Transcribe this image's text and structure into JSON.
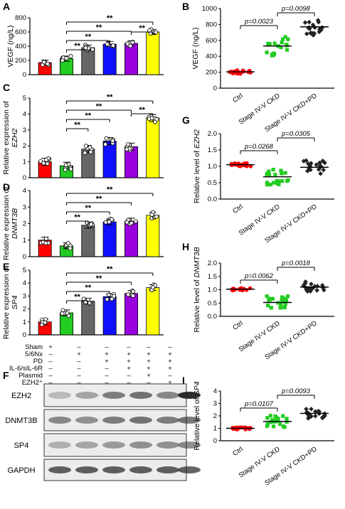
{
  "colors": {
    "red": "#ff0000",
    "green": "#22cc22",
    "gray": "#666666",
    "blue": "#1010ff",
    "purple": "#9900dd",
    "yellow": "#ffff00"
  },
  "panels": {
    "A": "A",
    "B": "B",
    "C": "C",
    "D": "D",
    "E": "E",
    "F": "F",
    "G": "G",
    "H": "H",
    "I": "I"
  },
  "chart_data": [
    {
      "id": "A",
      "type": "bar",
      "ylabel": "VEGF (ng/L)",
      "ylim": [
        0,
        800
      ],
      "yticks": [
        "0",
        "200",
        "400",
        "600",
        "800"
      ],
      "values": [
        170,
        225,
        380,
        430,
        440,
        600
      ],
      "sig": [
        "**",
        "**",
        "**",
        "**",
        "**"
      ]
    },
    {
      "id": "C",
      "type": "bar",
      "ylabel_line1": "Relative expression of",
      "ylabel_line2": "EZH2",
      "ylim": [
        0,
        5
      ],
      "yticks": [
        "0",
        "1",
        "2",
        "3",
        "4",
        "5"
      ],
      "values": [
        1.0,
        0.75,
        1.8,
        2.3,
        1.95,
        3.75
      ],
      "sig": [
        "**",
        "**",
        "**",
        "**",
        "**"
      ]
    },
    {
      "id": "D",
      "type": "bar",
      "ylabel_line1": "Relative expression of",
      "ylabel_line2": "DNMT3B",
      "ylim": [
        0,
        4
      ],
      "yticks": [
        "0",
        "1",
        "2",
        "3",
        "4"
      ],
      "values": [
        1.0,
        0.65,
        1.9,
        2.1,
        2.15,
        2.5
      ],
      "sig": [
        "**",
        "**",
        "**",
        "**"
      ]
    },
    {
      "id": "E",
      "type": "bar",
      "ylabel_line1": "Relative expression of",
      "ylabel_line2": "SP4",
      "ylim": [
        0,
        5
      ],
      "yticks": [
        "0",
        "1",
        "2",
        "3",
        "4",
        "5"
      ],
      "values": [
        1.0,
        1.7,
        2.6,
        2.95,
        3.2,
        3.65
      ],
      "sig": [
        "**",
        "**",
        "**",
        "**"
      ]
    },
    {
      "id": "B",
      "type": "scatter",
      "ylabel": "VEGF (ng/L)",
      "ylim": [
        0,
        1000
      ],
      "yticks": [
        "0",
        "200",
        "400",
        "600",
        "800",
        "1000"
      ],
      "categories": [
        "Ctrl",
        "Stage IV-V CKD",
        "Stage IV-V CKD+PD"
      ],
      "means": [
        205,
        530,
        770
      ],
      "pvalues": [
        "p=0.0023",
        "p=0.0098"
      ]
    },
    {
      "id": "G",
      "type": "scatter",
      "ylabel_line1": "Relative level of",
      "ylabel_line2": "EZH2",
      "ylim": [
        0,
        2.0
      ],
      "yticks": [
        "0.0",
        "0.5",
        "1.0",
        "1.5",
        "2.0"
      ],
      "categories": [
        "Ctrl",
        "Stage IV-V CKD",
        "Stage IV-V CKD+PD"
      ],
      "means": [
        1.05,
        0.68,
        0.97
      ],
      "pvalues": [
        "p=0.0268",
        "p=0.0305"
      ]
    },
    {
      "id": "H",
      "type": "scatter",
      "ylabel_line1": "Relative level of",
      "ylabel_line2": "DNMT3B",
      "ylim": [
        0,
        2.0
      ],
      "yticks": [
        "0.0",
        "0.5",
        "1.0",
        "1.5",
        "2.0"
      ],
      "categories": [
        "Ctrl",
        "Stage IV-V CKD",
        "Stage IV-V CKD+PD"
      ],
      "means": [
        1.02,
        0.52,
        1.1
      ],
      "pvalues": [
        "p=0.0062",
        "p=0.0018"
      ]
    },
    {
      "id": "I",
      "type": "scatter",
      "ylabel_line1": "Relative level of",
      "ylabel_line2": "SP4",
      "ylim": [
        0,
        4
      ],
      "yticks": [
        "0",
        "1",
        "2",
        "3",
        "4"
      ],
      "categories": [
        "Ctrl",
        "Stage IV-V CKD",
        "Stage IV-V CKD+PD"
      ],
      "means": [
        1.0,
        1.55,
        2.2
      ],
      "pvalues": [
        "p=0.0107",
        "p=0.0093"
      ]
    }
  ],
  "table": {
    "rows": [
      {
        "label": "Sham",
        "cells": [
          "+",
          "–",
          "–",
          "–",
          "–",
          "–"
        ]
      },
      {
        "label": "5/6Nx",
        "cells": [
          "–",
          "+",
          "+",
          "+",
          "+",
          "+"
        ]
      },
      {
        "label": "PD",
        "cells": [
          "–",
          "–",
          "+",
          "+",
          "+",
          "+"
        ]
      },
      {
        "label": "IL-6/sIL-6R",
        "cells": [
          "–",
          "–",
          "–",
          "+",
          "+",
          "+"
        ]
      },
      {
        "label": "Plasmid",
        "cells": [
          "–",
          "–",
          "–",
          "–",
          "+",
          "–"
        ]
      },
      {
        "label": "EZH2⁺",
        "cells": [
          "–",
          "–",
          "–",
          "–",
          "–",
          "+"
        ]
      }
    ]
  },
  "blots": [
    "EZH2",
    "DNMT3B",
    "SP4",
    "GAPDH"
  ]
}
